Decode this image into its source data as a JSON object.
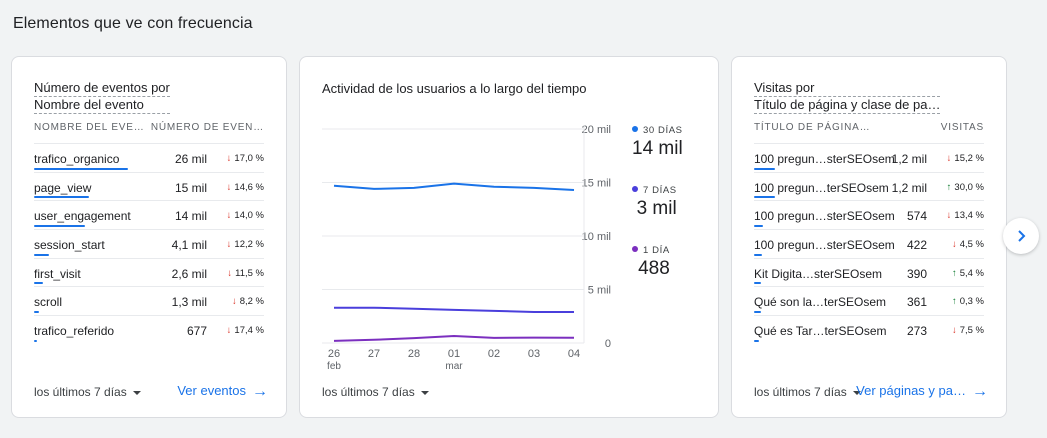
{
  "section_title": "Elementos que ve con frecuencia",
  "events_card": {
    "title_line1": "Número de eventos por",
    "title_line2": "Nombre del evento",
    "col1": "NOMBRE DEL EVE…",
    "col2": "NÚMERO DE EVEN…",
    "rows": [
      {
        "name": "trafico_organico",
        "value": "26 mil",
        "change": "17,0 %",
        "dir": "down",
        "share": 1.0
      },
      {
        "name": "page_view",
        "value": "15 mil",
        "change": "14,6 %",
        "dir": "down",
        "share": 0.58
      },
      {
        "name": "user_engagement",
        "value": "14 mil",
        "change": "14,0 %",
        "dir": "down",
        "share": 0.54
      },
      {
        "name": "session_start",
        "value": "4,1 mil",
        "change": "12,2 %",
        "dir": "down",
        "share": 0.16
      },
      {
        "name": "first_visit",
        "value": "2,6 mil",
        "change": "11,5 %",
        "dir": "down",
        "share": 0.1
      },
      {
        "name": "scroll",
        "value": "1,3 mil",
        "change": "8,2 %",
        "dir": "down",
        "share": 0.05
      },
      {
        "name": "trafico_referido",
        "value": "677",
        "change": "17,4 %",
        "dir": "down",
        "share": 0.03
      }
    ],
    "range_label": "los últimos 7 días",
    "link_label": "Ver eventos"
  },
  "activity_card": {
    "title": "Actividad de los usuarios a lo largo del tiempo",
    "range_label": "los últimos 7 días",
    "legend": [
      {
        "label": "30 DÍAS",
        "value": "14 mil",
        "color": "#1a73e8"
      },
      {
        "label": "7 DÍAS",
        "value": "3 mil",
        "color": "#4a3fdc"
      },
      {
        "label": "1 DÍA",
        "value": "488",
        "color": "#7b2fbf"
      }
    ]
  },
  "chart_data": {
    "type": "line",
    "x": [
      "26 feb",
      "27",
      "28",
      "01 mar",
      "02",
      "03",
      "04"
    ],
    "x_tick_labels": [
      "26",
      "27",
      "28",
      "01",
      "02",
      "03",
      "04"
    ],
    "x_tick_sublabels": [
      "feb",
      "",
      "",
      "mar",
      "",
      "",
      ""
    ],
    "y_tick_labels": [
      "20 mil",
      "15 mil",
      "10 mil",
      "5 mil",
      "0"
    ],
    "ylim": [
      0,
      20000
    ],
    "grid": true,
    "series": [
      {
        "name": "30 DÍAS",
        "color": "#1a73e8",
        "values": [
          14700,
          14400,
          14500,
          14900,
          14600,
          14500,
          14300
        ]
      },
      {
        "name": "7 DÍAS",
        "color": "#4a3fdc",
        "values": [
          3300,
          3300,
          3200,
          3100,
          3000,
          2900,
          2900
        ]
      },
      {
        "name": "1 DÍA",
        "color": "#7b2fbf",
        "values": [
          200,
          300,
          450,
          650,
          480,
          500,
          488
        ]
      }
    ]
  },
  "pages_card": {
    "title_line1": "Visitas por",
    "title_line2": "Título de página y clase de pa…",
    "col1": "TÍTULO DE PÁGINA…",
    "col2": "VISITAS",
    "rows": [
      {
        "name": "100 pregun…sterSEOsem",
        "value": "1,2 mil",
        "change": "15,2 %",
        "dir": "down",
        "share": 0.22
      },
      {
        "name": "100 pregun…terSEOsem",
        "value": "1,2 mil",
        "change": "30,0 %",
        "dir": "up",
        "share": 0.22
      },
      {
        "name": "100 pregun…sterSEOsem",
        "value": "574",
        "change": "13,4 %",
        "dir": "down",
        "share": 0.1
      },
      {
        "name": "100 pregun…sterSEOsem",
        "value": "422",
        "change": "4,5 %",
        "dir": "down",
        "share": 0.08
      },
      {
        "name": "Kit Digita…sterSEOsem",
        "value": "390",
        "change": "5,4 %",
        "dir": "up",
        "share": 0.07
      },
      {
        "name": "Qué son la…terSEOsem",
        "value": "361",
        "change": "0,3 %",
        "dir": "up",
        "share": 0.07
      },
      {
        "name": "Qué es Tar…terSEOsem",
        "value": "273",
        "change": "7,5 %",
        "dir": "down",
        "share": 0.05
      }
    ],
    "range_label": "los últimos 7 días",
    "link_label": "Ver páginas y pa…"
  },
  "icons": {
    "next": "chevron-right-icon",
    "link_arrow": "arrow-right-icon",
    "dropdown": "caret-down-icon"
  }
}
